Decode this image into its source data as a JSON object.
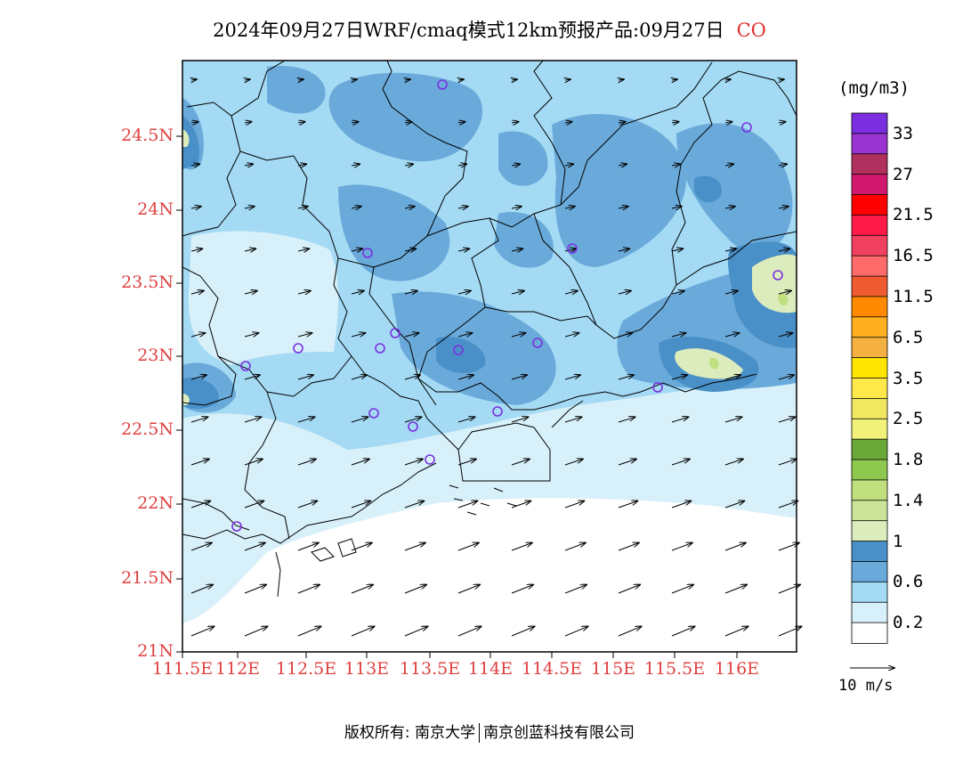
{
  "title": {
    "main": "2024年09月27日WRF/cmaq模式12km预报产品:09月27日",
    "species": "CO"
  },
  "axes": {
    "lat_ticks": [
      "24.5N",
      "24N",
      "23.5N",
      "23N",
      "22.5N",
      "22N",
      "21.5N",
      "21N"
    ],
    "lon_ticks": [
      "111.5E",
      "112E",
      "112.5E",
      "113E",
      "113.5E",
      "114E",
      "114.5E",
      "115E",
      "115.5E",
      "116E"
    ]
  },
  "colorbar": {
    "unit": "(mg/m3)",
    "labels": [
      "33",
      "27",
      "21.5",
      "16.5",
      "11.5",
      "6.5",
      "3.5",
      "2.5",
      "1.8",
      "1.4",
      "1",
      "0.6",
      "0.2"
    ],
    "colors_top_to_bottom": [
      "#7a2ee0",
      "#9a34d0",
      "#b0305e",
      "#d0186e",
      "#ff0000",
      "#ff1a4a",
      "#f04060",
      "#ff6a6a",
      "#f05a30",
      "#ff8a00",
      "#ffb020",
      "#f4b040",
      "#ffe600",
      "#ffe84a",
      "#f0e860",
      "#f2f27a",
      "#6aa83a",
      "#8ec84e",
      "#c0e080",
      "#cce49a",
      "#dcecbc",
      "#4a90c8",
      "#6aaada",
      "#a4daf4",
      "#d8f0fa",
      "#ffffff"
    ]
  },
  "wind_reference": {
    "label": "10 m/s"
  },
  "footer": {
    "copyright": "版权所有: 南京大学",
    "company": "南京创蓝科技有限公司"
  }
}
